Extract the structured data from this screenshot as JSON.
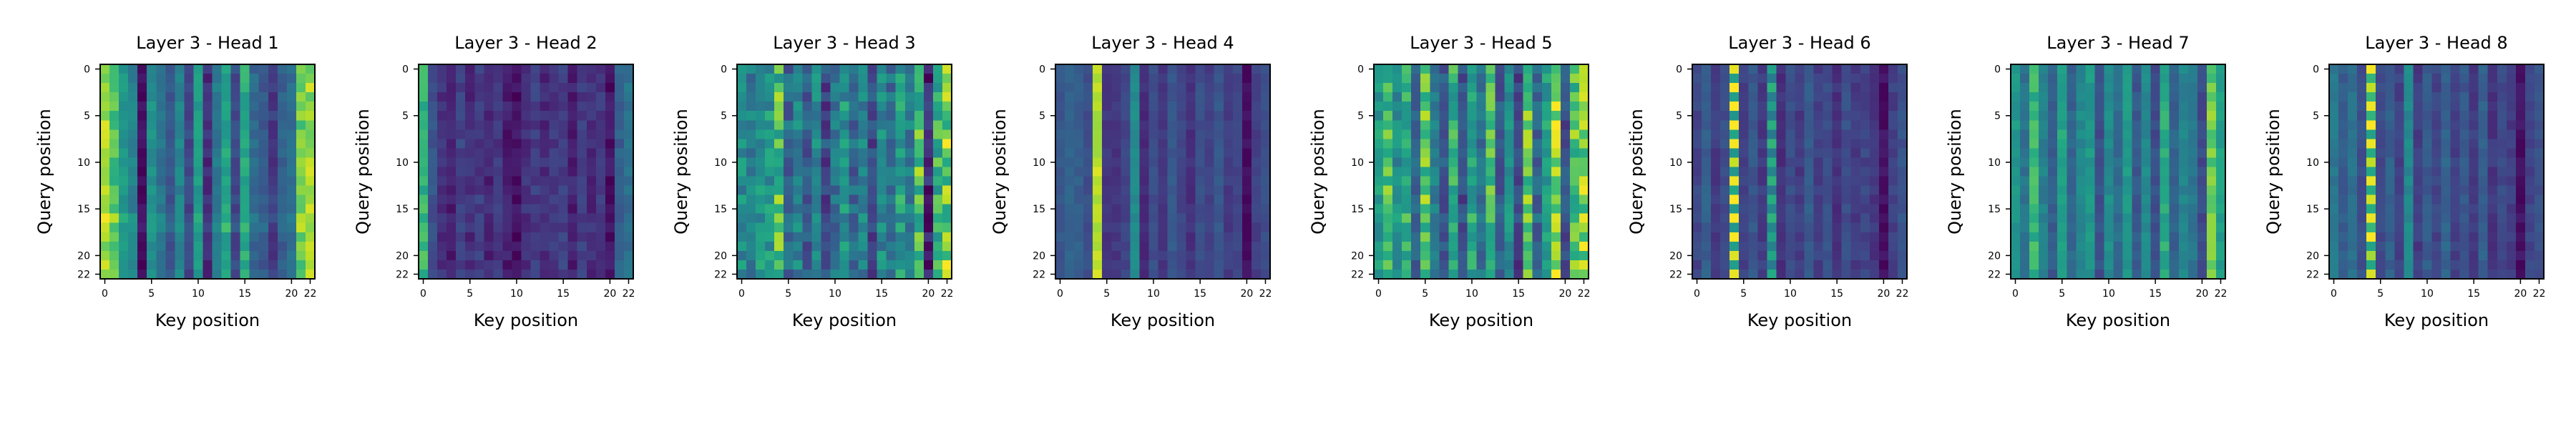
{
  "chart_data": [
    {
      "type": "heatmap",
      "title": "Layer 3 - Head 1",
      "xlabel": "Key position",
      "ylabel": "Query position",
      "size": 23,
      "xticks": [
        0,
        5,
        10,
        15,
        20,
        22
      ],
      "yticks": [
        0,
        5,
        10,
        15,
        20,
        22
      ],
      "colormap": "viridis",
      "col_base": [
        0.92,
        0.82,
        0.66,
        0.55,
        0.05,
        0.62,
        0.48,
        0.32,
        0.56,
        0.27,
        0.68,
        0.16,
        0.5,
        0.72,
        0.28,
        0.74,
        0.42,
        0.36,
        0.22,
        0.38,
        0.44,
        0.85,
        0.9
      ],
      "noise": 0.07,
      "row_boost": {
        "16": 0.06,
        "17": 0.05
      }
    },
    {
      "type": "heatmap",
      "title": "Layer 3 - Head 2",
      "xlabel": "Key position",
      "ylabel": "Query position",
      "size": 23,
      "xticks": [
        0,
        5,
        10,
        15,
        20,
        22
      ],
      "yticks": [
        0,
        5,
        10,
        15,
        20,
        22
      ],
      "colormap": "viridis",
      "col_base": [
        0.78,
        0.32,
        0.18,
        0.12,
        0.24,
        0.16,
        0.22,
        0.14,
        0.2,
        0.1,
        0.06,
        0.18,
        0.22,
        0.16,
        0.2,
        0.24,
        0.12,
        0.22,
        0.16,
        0.2,
        0.06,
        0.38,
        0.46
      ],
      "noise": 0.07,
      "row_boost": {}
    },
    {
      "type": "heatmap",
      "title": "Layer 3 - Head 3",
      "xlabel": "Key position",
      "ylabel": "Query position",
      "size": 23,
      "xticks": [
        0,
        5,
        10,
        15,
        20,
        22
      ],
      "yticks": [
        0,
        5,
        10,
        15,
        20,
        22
      ],
      "colormap": "viridis",
      "col_base": [
        0.6,
        0.52,
        0.66,
        0.62,
        0.78,
        0.42,
        0.56,
        0.36,
        0.6,
        0.28,
        0.48,
        0.62,
        0.4,
        0.54,
        0.3,
        0.58,
        0.46,
        0.66,
        0.52,
        0.8,
        0.12,
        0.72,
        0.86
      ],
      "noise": 0.16,
      "row_boost": {}
    },
    {
      "type": "heatmap",
      "title": "Layer 3 - Head 4",
      "xlabel": "Key position",
      "ylabel": "Query position",
      "size": 23,
      "xticks": [
        0,
        5,
        10,
        15,
        20,
        22
      ],
      "yticks": [
        0,
        5,
        10,
        15,
        20,
        22
      ],
      "colormap": "viridis",
      "col_base": [
        0.34,
        0.4,
        0.38,
        0.3,
        0.94,
        0.2,
        0.2,
        0.26,
        0.6,
        0.16,
        0.3,
        0.2,
        0.34,
        0.26,
        0.18,
        0.3,
        0.24,
        0.34,
        0.22,
        0.26,
        0.05,
        0.24,
        0.3
      ],
      "noise": 0.04,
      "row_boost": {}
    },
    {
      "type": "heatmap",
      "title": "Layer 3 - Head 5",
      "xlabel": "Key position",
      "ylabel": "Query position",
      "size": 23,
      "xticks": [
        0,
        5,
        10,
        15,
        20,
        22
      ],
      "yticks": [
        0,
        5,
        10,
        15,
        20,
        22
      ],
      "colormap": "viridis",
      "col_base": [
        0.66,
        0.8,
        0.6,
        0.74,
        0.4,
        0.84,
        0.52,
        0.34,
        0.74,
        0.28,
        0.7,
        0.46,
        0.82,
        0.36,
        0.62,
        0.24,
        0.86,
        0.4,
        0.68,
        0.92,
        0.3,
        0.82,
        0.88
      ],
      "noise": 0.12,
      "row_boost": {
        "16": 0.05
      }
    },
    {
      "type": "heatmap",
      "title": "Layer 3 - Head 6",
      "xlabel": "Key position",
      "ylabel": "Query position",
      "size": 23,
      "xticks": [
        0,
        5,
        10,
        15,
        20,
        22
      ],
      "yticks": [
        0,
        5,
        10,
        15,
        20,
        22
      ],
      "colormap": "viridis",
      "col_base": [
        0.26,
        0.38,
        0.22,
        0.3,
        0.84,
        0.24,
        0.34,
        0.22,
        0.64,
        0.18,
        0.3,
        0.22,
        0.36,
        0.24,
        0.3,
        0.18,
        0.3,
        0.22,
        0.26,
        0.2,
        0.06,
        0.24,
        0.32
      ],
      "noise": 0.05,
      "row_pattern_cols": {
        "4": 0.14,
        "8": 0.1
      },
      "row_boost": {}
    },
    {
      "type": "heatmap",
      "title": "Layer 3 - Head 7",
      "xlabel": "Key position",
      "ylabel": "Query position",
      "size": 23,
      "xticks": [
        0,
        5,
        10,
        15,
        20,
        22
      ],
      "yticks": [
        0,
        5,
        10,
        15,
        20,
        22
      ],
      "colormap": "viridis",
      "col_base": [
        0.66,
        0.48,
        0.78,
        0.54,
        0.36,
        0.72,
        0.4,
        0.58,
        0.66,
        0.3,
        0.6,
        0.44,
        0.68,
        0.34,
        0.58,
        0.3,
        0.74,
        0.4,
        0.56,
        0.5,
        0.28,
        0.86,
        0.7
      ],
      "noise": 0.06,
      "row_boost": {}
    },
    {
      "type": "heatmap",
      "title": "Layer 3 - Head 8",
      "xlabel": "Key position",
      "ylabel": "Query position",
      "size": 23,
      "xticks": [
        0,
        5,
        10,
        15,
        20,
        22
      ],
      "yticks": [
        0,
        5,
        10,
        15,
        20,
        22
      ],
      "colormap": "viridis",
      "col_base": [
        0.5,
        0.36,
        0.46,
        0.3,
        0.86,
        0.28,
        0.38,
        0.24,
        0.58,
        0.22,
        0.36,
        0.26,
        0.4,
        0.24,
        0.34,
        0.22,
        0.38,
        0.2,
        0.28,
        0.22,
        0.06,
        0.26,
        0.32
      ],
      "noise": 0.05,
      "row_pattern_cols": {
        "4": 0.1
      },
      "row_boost": {}
    }
  ]
}
